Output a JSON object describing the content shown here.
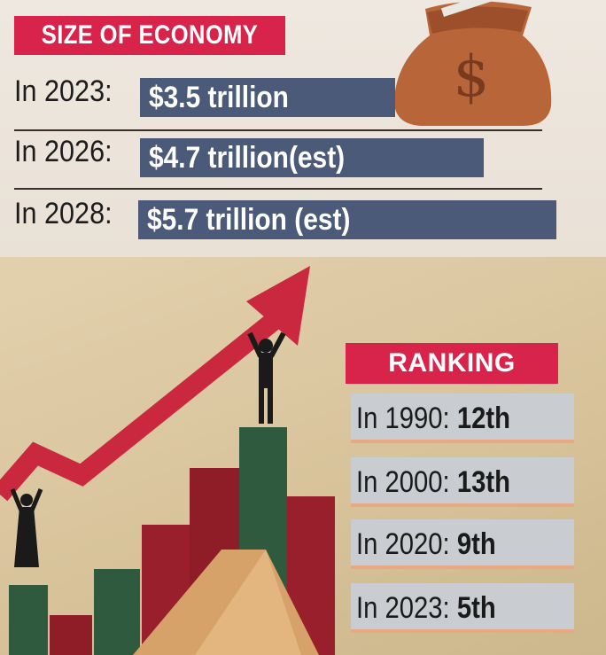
{
  "chart_data": {
    "type": "table",
    "title": "SIZE OF ECONOMY",
    "economy_size": [
      {
        "label": "In 2023:",
        "value": "$3.5 trillion",
        "amount": 3.5
      },
      {
        "label": "In 2026:",
        "value": "$4.7 trillion(est)",
        "amount": 4.7
      },
      {
        "label": "In 2028:",
        "value": "$5.7 trillion (est)",
        "amount": 5.7
      }
    ],
    "ranking_title": "RANKING",
    "ranking": [
      {
        "label": "In 1990:",
        "value": "12th"
      },
      {
        "label": "In 2000:",
        "value": "13th"
      },
      {
        "label": "In 2020:",
        "value": "9th"
      },
      {
        "label": "In 2023:",
        "value": "5th"
      }
    ]
  },
  "colors": {
    "accent_red": "#d8234a",
    "value_bar": "#4a5a78",
    "rank_bg": "#c9ccd0"
  },
  "illustration": {
    "money_bag_symbol": "$"
  }
}
